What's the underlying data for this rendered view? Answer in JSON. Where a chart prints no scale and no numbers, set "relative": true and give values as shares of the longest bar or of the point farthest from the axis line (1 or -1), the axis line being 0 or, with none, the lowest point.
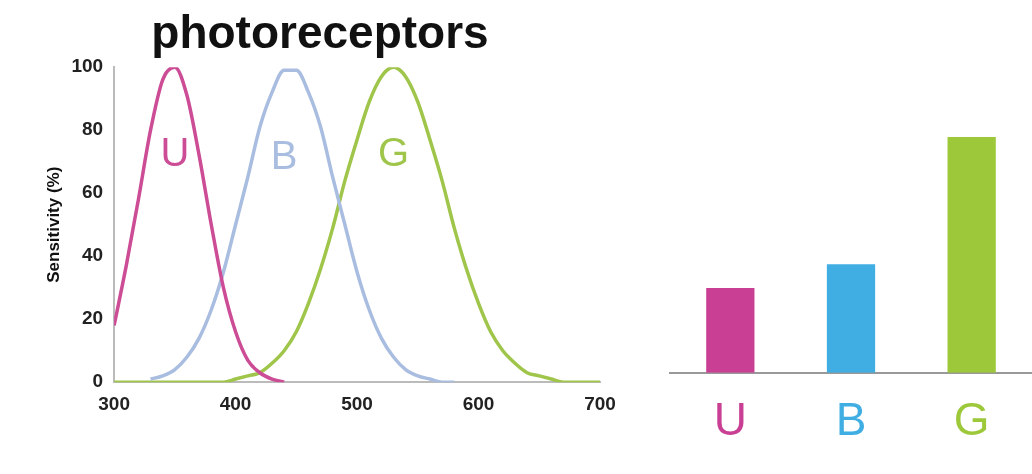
{
  "chart_data": [
    {
      "type": "line",
      "title": "photoreceptors",
      "ylabel": "Sensitivity (%)",
      "x": [
        300,
        310,
        320,
        330,
        340,
        350,
        360,
        370,
        380,
        390,
        400,
        410,
        420,
        430,
        440,
        450,
        460,
        470,
        480,
        490,
        500,
        510,
        520,
        530,
        540,
        550,
        560,
        570,
        580,
        590,
        600,
        610,
        620,
        630,
        640,
        650,
        660,
        670,
        680,
        690,
        700
      ],
      "xlim": [
        300,
        700
      ],
      "xticks": [
        300,
        400,
        500,
        600,
        700
      ],
      "ylim": [
        0,
        100
      ],
      "yticks": [
        0,
        20,
        40,
        60,
        80,
        100
      ],
      "grid": false,
      "legend": false,
      "marker": "none",
      "series": [
        {
          "name": "U",
          "color": "#cc4c96",
          "values": [
            18,
            37,
            58,
            80,
            96,
            100,
            91,
            72,
            50,
            30,
            16,
            7,
            3,
            1,
            0,
            null,
            null,
            null,
            null,
            null,
            null,
            null,
            null,
            null,
            null,
            null,
            null,
            null,
            null,
            null,
            null,
            null,
            null,
            null,
            null,
            null,
            null,
            null,
            null,
            null,
            null
          ]
        },
        {
          "name": "B",
          "color": "#a9bde0",
          "values": [
            null,
            null,
            null,
            1,
            2,
            4,
            8,
            14,
            23,
            35,
            50,
            65,
            81,
            92,
            99,
            99,
            92,
            81,
            65,
            50,
            35,
            23,
            14,
            8,
            4,
            2,
            1,
            0,
            0,
            null,
            null,
            null,
            null,
            null,
            null,
            null,
            null,
            null,
            null,
            null,
            null
          ]
        },
        {
          "name": "G",
          "color": "#9fc54a",
          "values": [
            0,
            0,
            0,
            0,
            0,
            0,
            0,
            0,
            0,
            0,
            1,
            2,
            3,
            6,
            10,
            16,
            25,
            36,
            49,
            64,
            77,
            89,
            97,
            100,
            97,
            89,
            77,
            64,
            49,
            36,
            25,
            16,
            10,
            6,
            3,
            2,
            1,
            0,
            0,
            0,
            0
          ]
        }
      ]
    },
    {
      "type": "bar",
      "relative": true,
      "categories": [
        "U",
        "B",
        "G"
      ],
      "values": [
        0.36,
        0.46,
        1
      ],
      "colors": [
        "#c93f94",
        "#41aee3",
        "#9dc83a"
      ],
      "grid": false,
      "legend": false
    }
  ]
}
